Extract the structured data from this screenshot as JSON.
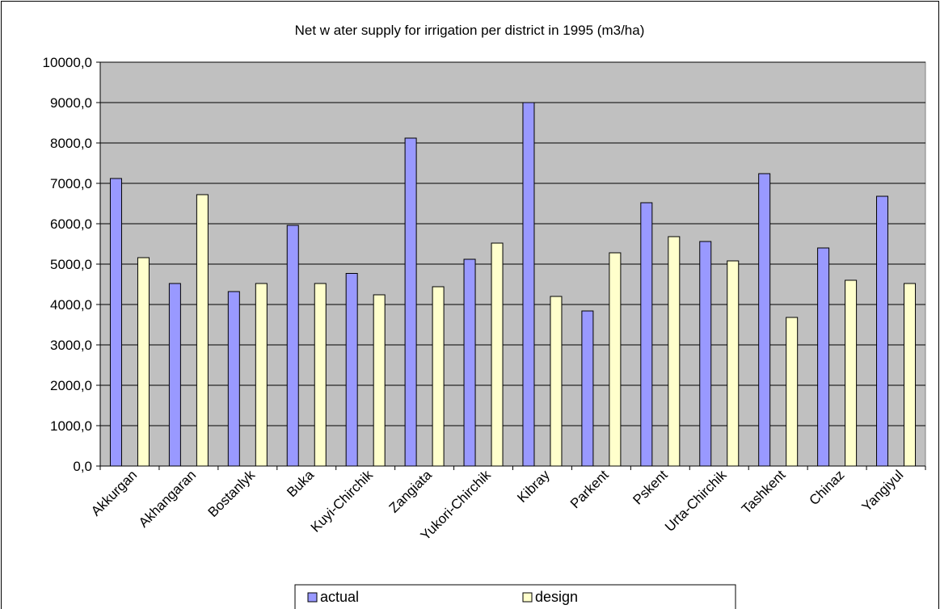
{
  "chart_data": {
    "type": "bar",
    "title": "Net w ater supply for irrigation per district in 1995 (m3/ha)",
    "xlabel": "",
    "ylabel": "",
    "ylim": [
      0,
      10000
    ],
    "yticks": [
      0,
      1000,
      2000,
      3000,
      4000,
      5000,
      6000,
      7000,
      8000,
      9000,
      10000
    ],
    "ytick_labels": [
      "0,0",
      "1000,0",
      "2000,0",
      "3000,0",
      "4000,0",
      "5000,0",
      "6000,0",
      "7000,0",
      "8000,0",
      "9000,0",
      "10000,0"
    ],
    "grid": true,
    "legend_position": "bottom",
    "categories": [
      "Akkurgan",
      "Akhangaran",
      "Bostanlyk",
      "Buka",
      "Kuyi-Chirchik",
      "Zangiata",
      "Yukori-Chirchik",
      "Kibray",
      "Parkent",
      "Pskent",
      "Urta-Chirchik",
      "Tashkent",
      "Chinaz",
      "Yangiyul"
    ],
    "series": [
      {
        "name": "actual",
        "color": "#9999ff",
        "values": [
          7120,
          4520,
          4320,
          5960,
          4770,
          8120,
          5120,
          9000,
          3840,
          6520,
          5560,
          7240,
          5400,
          6680
        ]
      },
      {
        "name": "design",
        "color": "#ffffcc",
        "values": [
          5160,
          6720,
          4520,
          4520,
          4240,
          4440,
          5520,
          4200,
          5280,
          5680,
          5080,
          3680,
          4600,
          4520
        ]
      }
    ],
    "plot_background": "#c0c0c0",
    "bar_outline": "#000000"
  }
}
